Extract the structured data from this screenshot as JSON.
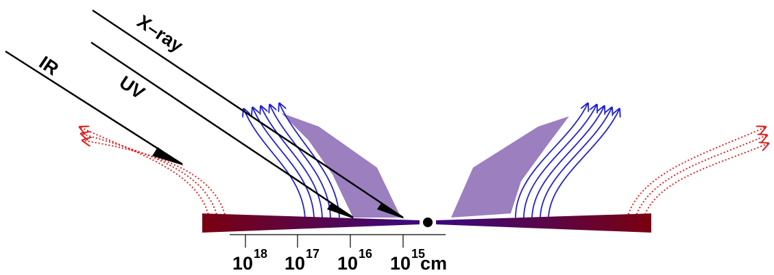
{
  "labels": {
    "xray": "X–ray",
    "uv": "UV",
    "ir": "IR"
  },
  "scale": {
    "ticks": [
      {
        "base": "10",
        "exp": "18"
      },
      {
        "base": "10",
        "exp": "17"
      },
      {
        "base": "10",
        "exp": "16"
      },
      {
        "base": "10",
        "exp": "15"
      }
    ],
    "unit": "cm"
  }
}
